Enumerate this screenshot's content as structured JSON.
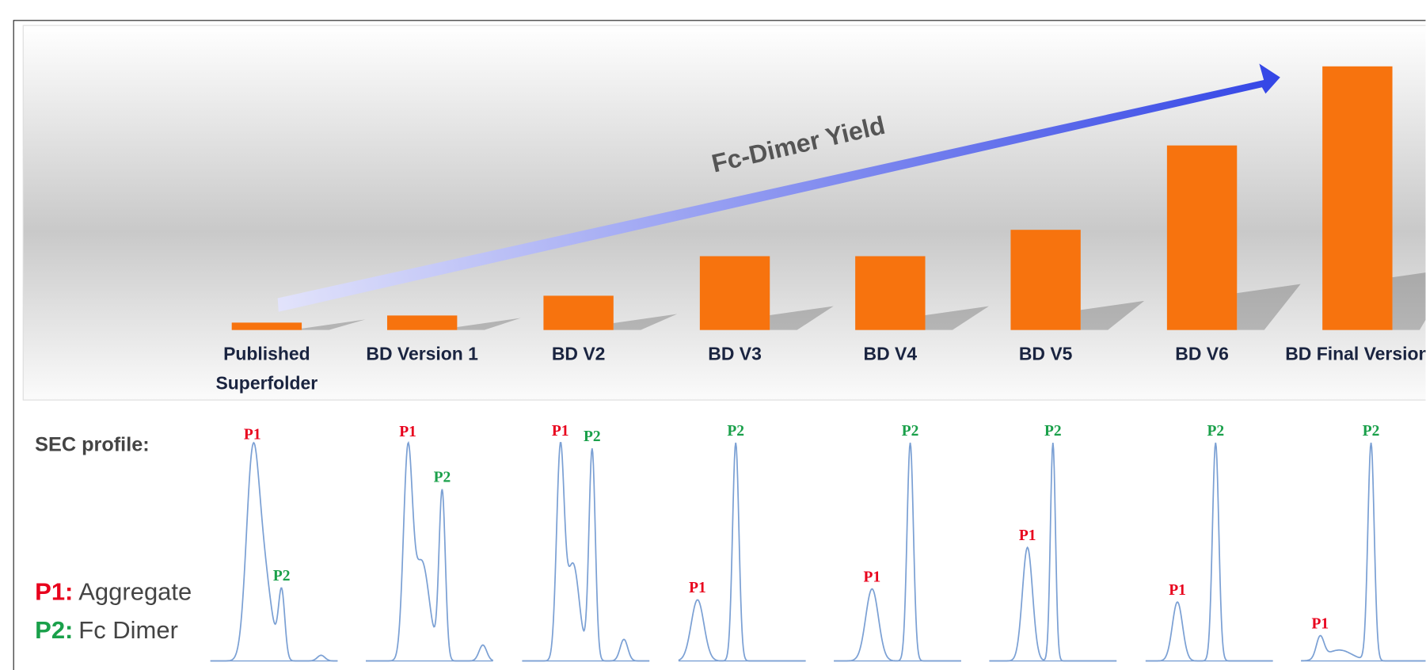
{
  "chart_data": {
    "type": "bar",
    "annotation": "Fc-Dimer Yield",
    "categories": [
      "Published Superfolder",
      "BD Version 1",
      "BD V2",
      "BD V3",
      "BD V4",
      "BD V5",
      "BD V6",
      "BD Final Version"
    ],
    "values": [
      2.8,
      5.5,
      13,
      28,
      28,
      38,
      70,
      100
    ],
    "color": "#f7730e",
    "ylim": [
      0,
      100
    ],
    "sec_label": "SEC profile:",
    "legend": [
      {
        "key": "P1:",
        "text": "Aggregate",
        "color": "#e8001c"
      },
      {
        "key": "P2:",
        "text": "Fc Dimer",
        "color": "#1aa04a"
      }
    ],
    "profiles": [
      {
        "peaks": [
          "P1",
          "P2"
        ]
      },
      {
        "peaks": [
          "P1",
          "P2"
        ]
      },
      {
        "peaks": [
          "P1",
          "P2"
        ]
      },
      {
        "peaks": [
          "P1",
          "P2"
        ]
      },
      {
        "peaks": [
          "P1",
          "P2"
        ]
      },
      {
        "peaks": [
          "P1",
          "P2"
        ]
      },
      {
        "peaks": [
          "P1",
          "P2"
        ]
      },
      {
        "peaks": [
          "P1",
          "P2"
        ]
      }
    ]
  }
}
